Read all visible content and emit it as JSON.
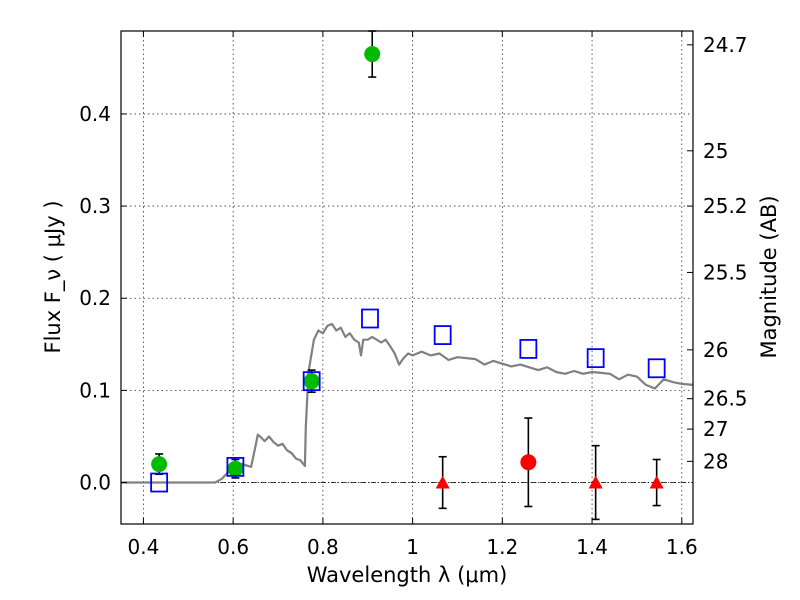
{
  "chart_data": {
    "type": "scatter",
    "xlabel": "Wavelength  λ (μm)",
    "ylabel": "Flux  F_ν  ( μJy )",
    "ylabel_right": "Magnitude (AB)",
    "xlim": [
      0.35,
      1.625
    ],
    "ylim": [
      -0.045,
      0.49
    ],
    "grid": true,
    "xticks": [
      0.4,
      0.6,
      0.8,
      1.0,
      1.2,
      1.4,
      1.6
    ],
    "xtick_labels": [
      "0.4",
      "0.6",
      "0.8",
      "1",
      "1.2",
      "1.4",
      "1.6"
    ],
    "yticks": [
      0.0,
      0.1,
      0.2,
      0.3,
      0.4
    ],
    "ytick_labels": [
      "0.0",
      "0.1",
      "0.2",
      "0.3",
      "0.4"
    ],
    "right_ticks": [
      {
        "label": "24.7",
        "flux": 0.475
      },
      {
        "label": "25",
        "flux": 0.36
      },
      {
        "label": "25.2",
        "flux": 0.3
      },
      {
        "label": "25.5",
        "flux": 0.228
      },
      {
        "label": "26",
        "flux": 0.144
      },
      {
        "label": "26.5",
        "flux": 0.091
      },
      {
        "label": "27",
        "flux": 0.058
      },
      {
        "label": "28",
        "flux": 0.023
      }
    ],
    "colors": {
      "model": "#808080",
      "green": "#00bb00",
      "red": "#ff0000",
      "blue": "#0000ff",
      "errorbar": "#000000",
      "zero_line": "#000000"
    },
    "model_sed": {
      "x": [
        0.35,
        0.56,
        0.575,
        0.59,
        0.6,
        0.62,
        0.64,
        0.65,
        0.655,
        0.66,
        0.67,
        0.68,
        0.69,
        0.7,
        0.71,
        0.72,
        0.73,
        0.74,
        0.75,
        0.76,
        0.762,
        0.768,
        0.78,
        0.79,
        0.8,
        0.81,
        0.82,
        0.83,
        0.84,
        0.85,
        0.86,
        0.87,
        0.88,
        0.885,
        0.89,
        0.9,
        0.91,
        0.92,
        0.93,
        0.94,
        0.95,
        0.96,
        0.97,
        0.98,
        0.99,
        1.0,
        1.02,
        1.04,
        1.06,
        1.08,
        1.1,
        1.12,
        1.14,
        1.16,
        1.18,
        1.2,
        1.22,
        1.24,
        1.26,
        1.28,
        1.3,
        1.32,
        1.34,
        1.36,
        1.38,
        1.4,
        1.42,
        1.44,
        1.46,
        1.48,
        1.5,
        1.52,
        1.54,
        1.56,
        1.58,
        1.6,
        1.625
      ],
      "y": [
        0.0,
        0.0,
        0.004,
        0.012,
        0.02,
        0.02,
        0.017,
        0.04,
        0.052,
        0.05,
        0.045,
        0.05,
        0.044,
        0.04,
        0.042,
        0.035,
        0.032,
        0.026,
        0.024,
        0.018,
        0.06,
        0.12,
        0.155,
        0.165,
        0.162,
        0.17,
        0.172,
        0.165,
        0.168,
        0.158,
        0.162,
        0.155,
        0.152,
        0.138,
        0.155,
        0.155,
        0.158,
        0.155,
        0.152,
        0.155,
        0.148,
        0.14,
        0.128,
        0.135,
        0.14,
        0.138,
        0.142,
        0.138,
        0.14,
        0.133,
        0.136,
        0.135,
        0.134,
        0.128,
        0.132,
        0.129,
        0.126,
        0.128,
        0.125,
        0.122,
        0.125,
        0.12,
        0.118,
        0.121,
        0.118,
        0.12,
        0.119,
        0.118,
        0.112,
        0.117,
        0.115,
        0.106,
        0.102,
        0.112,
        0.109,
        0.107,
        0.106
      ]
    },
    "green_points": [
      {
        "x": 0.435,
        "y": 0.02,
        "err": 0.011
      },
      {
        "x": 0.605,
        "y": 0.015,
        "err": 0.01
      },
      {
        "x": 0.775,
        "y": 0.11,
        "err": 0.012
      },
      {
        "x": 0.91,
        "y": 0.465,
        "err": 0.025
      }
    ],
    "red_points": [
      {
        "x": 1.258,
        "y": 0.022,
        "err": 0.048
      }
    ],
    "red_limits": [
      {
        "x": 1.067,
        "y": 0.0,
        "err": 0.028
      },
      {
        "x": 1.408,
        "y": 0.0,
        "err": 0.04
      },
      {
        "x": 1.544,
        "y": 0.0,
        "err": 0.025
      }
    ],
    "blue_boxes": [
      {
        "x": 0.435,
        "y": 0.0
      },
      {
        "x": 0.605,
        "y": 0.017
      },
      {
        "x": 0.775,
        "y": 0.11
      },
      {
        "x": 0.905,
        "y": 0.178
      },
      {
        "x": 1.067,
        "y": 0.16
      },
      {
        "x": 1.258,
        "y": 0.145
      },
      {
        "x": 1.408,
        "y": 0.135
      },
      {
        "x": 1.544,
        "y": 0.124
      }
    ]
  }
}
